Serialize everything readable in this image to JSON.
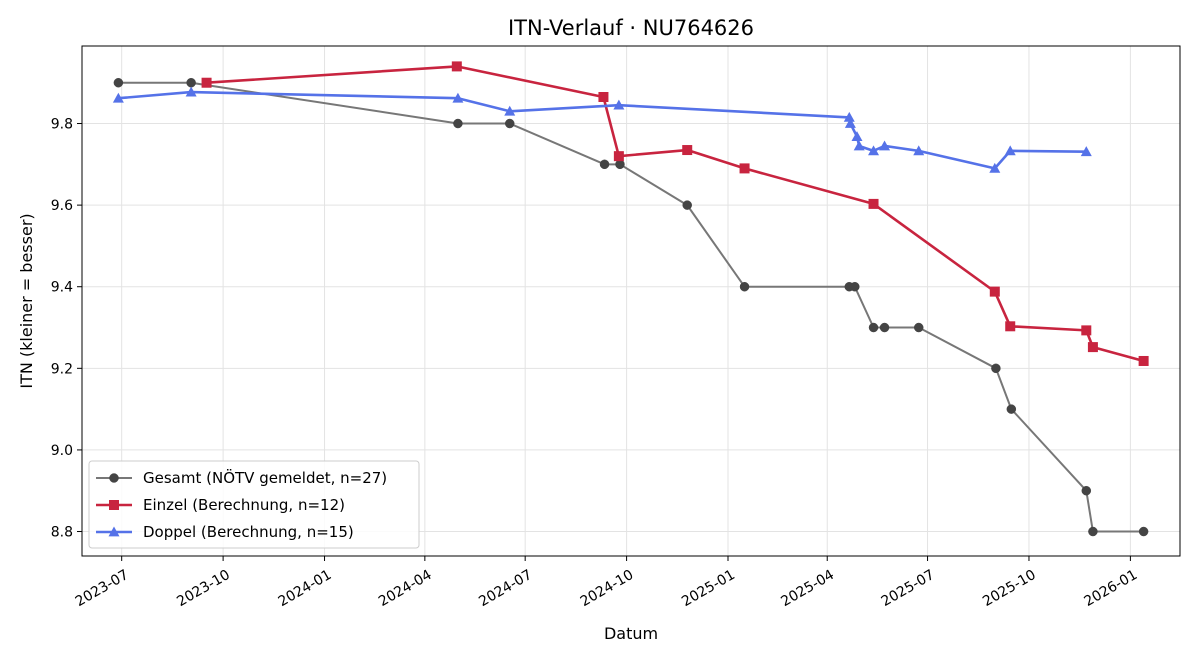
{
  "chart_data": {
    "type": "line",
    "title": "ITN-Verlauf · NU764626",
    "xlabel": "Datum",
    "ylabel": "ITN  (kleiner = besser)",
    "x_type": "date",
    "xlim": [
      "2023-05-26",
      "2026-02-15"
    ],
    "ylim": [
      8.74,
      9.99
    ],
    "yticks": [
      8.8,
      9.0,
      9.2,
      9.4,
      9.6,
      9.8
    ],
    "ytick_labels": [
      "8.8",
      "9.0",
      "9.2",
      "9.4",
      "9.6",
      "9.8"
    ],
    "xticks": [
      "2023-07-01",
      "2023-10-01",
      "2024-01-01",
      "2024-04-01",
      "2024-07-01",
      "2024-10-01",
      "2025-01-01",
      "2025-04-01",
      "2025-07-01",
      "2025-10-01",
      "2026-01-01"
    ],
    "xtick_labels": [
      "2023-07",
      "2023-10",
      "2024-01",
      "2024-04",
      "2024-07",
      "2024-10",
      "2025-01",
      "2025-04",
      "2025-07",
      "2025-10",
      "2026-01"
    ],
    "grid": true,
    "legend_position": "lower-left",
    "series": [
      {
        "name": "Gesamt (NÖTV gemeldet, n=27)",
        "color": "#777777",
        "marker": "circle",
        "points": [
          [
            "2023-06-28",
            9.9
          ],
          [
            "2023-09-02",
            9.9
          ],
          [
            "2024-05-01",
            9.8
          ],
          [
            "2024-06-17",
            9.8
          ],
          [
            "2024-09-11",
            9.7
          ],
          [
            "2024-09-25",
            9.7
          ],
          [
            "2024-11-25",
            9.6
          ],
          [
            "2025-01-16",
            9.4
          ],
          [
            "2025-04-21",
            9.4
          ],
          [
            "2025-04-26",
            9.4
          ],
          [
            "2025-05-13",
            9.3
          ],
          [
            "2025-05-23",
            9.3
          ],
          [
            "2025-06-23",
            9.3
          ],
          [
            "2025-09-01",
            9.2
          ],
          [
            "2025-09-15",
            9.1
          ],
          [
            "2025-11-22",
            8.9
          ],
          [
            "2025-11-28",
            8.8
          ],
          [
            "2026-01-13",
            8.8
          ]
        ]
      },
      {
        "name": "Einzel (Berechnung, n=12)",
        "color": "#c8243f",
        "marker": "square",
        "points": [
          [
            "2023-09-16",
            9.9
          ],
          [
            "2024-04-30",
            9.94
          ],
          [
            "2024-09-10",
            9.865
          ],
          [
            "2024-09-24",
            9.72
          ],
          [
            "2024-11-25",
            9.735
          ],
          [
            "2025-01-16",
            9.69
          ],
          [
            "2025-05-13",
            9.603
          ],
          [
            "2025-08-31",
            9.388
          ],
          [
            "2025-09-14",
            9.303
          ],
          [
            "2025-11-22",
            9.293
          ],
          [
            "2025-11-28",
            9.252
          ],
          [
            "2026-01-13",
            9.218
          ]
        ]
      },
      {
        "name": "Doppel (Berechnung, n=15)",
        "color": "#5572e8",
        "marker": "triangle",
        "points": [
          [
            "2023-06-28",
            9.862
          ],
          [
            "2023-09-02",
            9.877
          ],
          [
            "2024-05-01",
            9.862
          ],
          [
            "2024-06-17",
            9.83
          ],
          [
            "2024-09-24",
            9.845
          ],
          [
            "2025-04-21",
            9.815
          ],
          [
            "2025-04-22",
            9.8
          ],
          [
            "2025-04-28",
            9.768
          ],
          [
            "2025-04-30",
            9.745
          ],
          [
            "2025-05-13",
            9.733
          ],
          [
            "2025-05-23",
            9.745
          ],
          [
            "2025-06-23",
            9.733
          ],
          [
            "2025-08-31",
            9.69
          ],
          [
            "2025-09-14",
            9.733
          ],
          [
            "2025-11-22",
            9.731
          ]
        ]
      }
    ]
  }
}
